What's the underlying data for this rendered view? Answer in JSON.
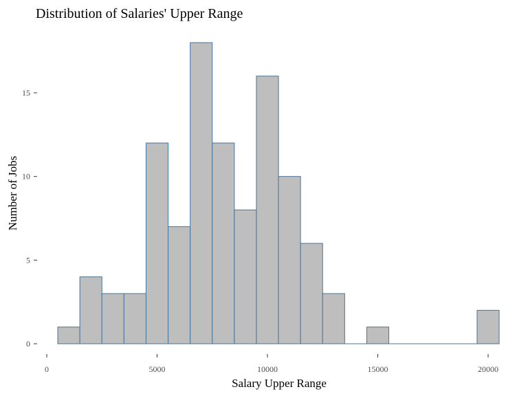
{
  "chart_data": {
    "type": "bar",
    "title": "Distribution of Salaries' Upper Range",
    "xlabel": "Salary Upper Range",
    "ylabel": "Number of Jobs",
    "bin_width": 1000,
    "bins": [
      {
        "center": 1000,
        "count": 1
      },
      {
        "center": 2000,
        "count": 4
      },
      {
        "center": 3000,
        "count": 3
      },
      {
        "center": 4000,
        "count": 3
      },
      {
        "center": 5000,
        "count": 12
      },
      {
        "center": 6000,
        "count": 7
      },
      {
        "center": 7000,
        "count": 18
      },
      {
        "center": 8000,
        "count": 12
      },
      {
        "center": 9000,
        "count": 8
      },
      {
        "center": 10000,
        "count": 16
      },
      {
        "center": 11000,
        "count": 10
      },
      {
        "center": 12000,
        "count": 6
      },
      {
        "center": 13000,
        "count": 3
      },
      {
        "center": 14000,
        "count": 0
      },
      {
        "center": 15000,
        "count": 1
      },
      {
        "center": 16000,
        "count": 0
      },
      {
        "center": 17000,
        "count": 0
      },
      {
        "center": 18000,
        "count": 0
      },
      {
        "center": 19000,
        "count": 0
      },
      {
        "center": 20000,
        "count": 2
      }
    ],
    "xlim": [
      0,
      20500
    ],
    "ylim": [
      0,
      18
    ],
    "x_ticks": [
      0,
      5000,
      10000,
      15000,
      20000
    ],
    "x_tick_labels": [
      "0",
      "5000",
      "10000",
      "15000",
      "20000"
    ],
    "y_ticks": [
      0,
      5,
      10,
      15
    ],
    "y_tick_labels": [
      "0",
      "5",
      "10",
      "15"
    ],
    "grid": false,
    "bar_fill": "#bebebe",
    "bar_stroke": "#4a7396"
  }
}
